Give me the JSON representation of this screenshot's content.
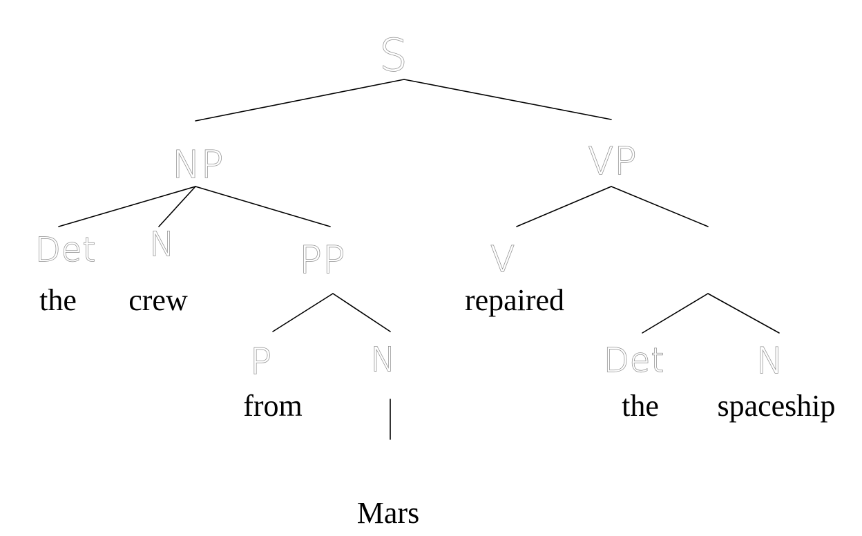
{
  "tree": {
    "labels": {
      "s": "S",
      "np": "NP",
      "vp": "VP",
      "det_subject": "Det",
      "n_subject": "N",
      "pp": "PP",
      "p": "P",
      "n_pp": "N",
      "v": "V",
      "det_object": "Det",
      "n_object": "N"
    },
    "words": {
      "the_subject": "the",
      "crew": "crew",
      "from": "from",
      "mars": "Mars",
      "repaired": "repaired",
      "the_object": "the",
      "spaceship": "spaceship"
    },
    "colors": {
      "edge": "#000000",
      "label": "#8e8e8e",
      "word": "#000000"
    }
  }
}
